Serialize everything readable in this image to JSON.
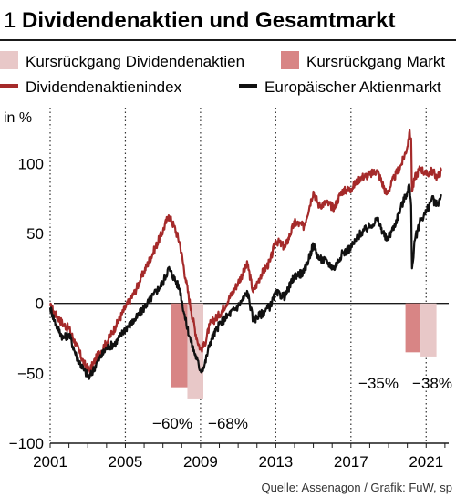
{
  "chart_data": {
    "type": "line",
    "title_number": "1",
    "title": "Dividendenaktien und Gesamtmarkt",
    "ylabel": "in %",
    "source": "Quelle: Assenagon / Grafik: FuW, sp",
    "xlim": [
      2001,
      2022.2
    ],
    "ylim": [
      -100,
      140
    ],
    "x_ticks": [
      2001,
      2005,
      2009,
      2013,
      2017,
      2021
    ],
    "y_ticks": [
      100,
      50,
      0,
      -50,
      -100
    ],
    "grid": true,
    "legend_position": "top",
    "colors": {
      "dividend_line": "#a52a2a",
      "market_line": "#111111",
      "dividend_drawdown": "#e8c8c8",
      "market_drawdown": "#d88585"
    },
    "legend": [
      {
        "label": "Kursrückgang Dividendenaktien",
        "kind": "bar",
        "color": "#e8c8c8"
      },
      {
        "label": "Kursrückgang Markt",
        "kind": "bar",
        "color": "#d88585"
      },
      {
        "label": "Dividendenaktienindex",
        "kind": "line",
        "color": "#a52a2a"
      },
      {
        "label": "Europäischer Aktienmarkt",
        "kind": "line",
        "color": "#111111"
      }
    ],
    "series": [
      {
        "name": "Dividendenaktienindex",
        "color": "#a52a2a",
        "x": [
          2001.0,
          2001.3,
          2001.7,
          2002.0,
          2002.4,
          2002.8,
          2003.1,
          2003.5,
          2004.0,
          2004.5,
          2005.0,
          2005.5,
          2006.0,
          2006.5,
          2007.0,
          2007.3,
          2007.6,
          2007.9,
          2008.2,
          2008.5,
          2008.8,
          2009.0,
          2009.2,
          2009.5,
          2010.0,
          2010.5,
          2011.0,
          2011.5,
          2011.8,
          2012.2,
          2012.7,
          2013.0,
          2013.5,
          2014.0,
          2014.5,
          2015.0,
          2015.3,
          2015.7,
          2016.1,
          2016.5,
          2017.0,
          2017.5,
          2018.0,
          2018.4,
          2018.9,
          2019.3,
          2019.7,
          2020.0,
          2020.1,
          2020.2,
          2020.25,
          2020.4,
          2020.7,
          2021.0,
          2021.3,
          2021.6,
          2021.8
        ],
        "values": [
          -2,
          -8,
          -15,
          -18,
          -30,
          -43,
          -48,
          -38,
          -28,
          -16,
          -3,
          8,
          23,
          37,
          52,
          63,
          55,
          43,
          18,
          -5,
          -25,
          -33,
          -30,
          -15,
          -8,
          3,
          15,
          28,
          8,
          20,
          30,
          45,
          40,
          58,
          55,
          80,
          70,
          72,
          68,
          80,
          82,
          90,
          92,
          95,
          78,
          90,
          100,
          112,
          122,
          118,
          80,
          90,
          97,
          92,
          95,
          90,
          95
        ]
      },
      {
        "name": "Europäischer Aktienmarkt",
        "color": "#111111",
        "x": [
          2001.0,
          2001.3,
          2001.7,
          2002.0,
          2002.4,
          2002.8,
          2003.1,
          2003.5,
          2004.0,
          2004.5,
          2005.0,
          2005.5,
          2006.0,
          2006.5,
          2007.0,
          2007.3,
          2007.6,
          2007.9,
          2008.2,
          2008.5,
          2008.8,
          2009.0,
          2009.2,
          2009.5,
          2010.0,
          2010.5,
          2011.0,
          2011.5,
          2011.8,
          2012.2,
          2012.7,
          2013.0,
          2013.5,
          2014.0,
          2014.5,
          2015.0,
          2015.3,
          2015.7,
          2016.1,
          2016.5,
          2017.0,
          2017.5,
          2018.0,
          2018.4,
          2018.9,
          2019.3,
          2019.7,
          2020.0,
          2020.1,
          2020.2,
          2020.25,
          2020.4,
          2020.7,
          2021.0,
          2021.3,
          2021.6,
          2021.8
        ],
        "values": [
          -3,
          -15,
          -25,
          -22,
          -38,
          -48,
          -53,
          -42,
          -32,
          -28,
          -18,
          -12,
          -3,
          6,
          15,
          25,
          18,
          10,
          -12,
          -28,
          -40,
          -48,
          -45,
          -28,
          -15,
          -8,
          -2,
          8,
          -12,
          -8,
          -2,
          7,
          5,
          20,
          22,
          42,
          32,
          30,
          25,
          35,
          40,
          50,
          55,
          60,
          45,
          55,
          70,
          80,
          85,
          70,
          25,
          45,
          60,
          65,
          75,
          70,
          78
        ]
      }
    ],
    "drawdowns": [
      {
        "series": "Markt",
        "x_start": 2007.45,
        "x_end": 2008.3,
        "value": -60,
        "label": "−60%",
        "color": "#d88585"
      },
      {
        "series": "Dividendenaktien",
        "x_start": 2008.3,
        "x_end": 2009.15,
        "value": -68,
        "label": "−68%",
        "color": "#e8c8c8"
      },
      {
        "series": "Markt",
        "x_start": 2019.9,
        "x_end": 2020.7,
        "value": -35,
        "label": "−35%",
        "color": "#d88585"
      },
      {
        "series": "Dividendenaktien",
        "x_start": 2020.7,
        "x_end": 2021.55,
        "value": -38,
        "label": "−38%",
        "color": "#e8c8c8"
      }
    ]
  }
}
